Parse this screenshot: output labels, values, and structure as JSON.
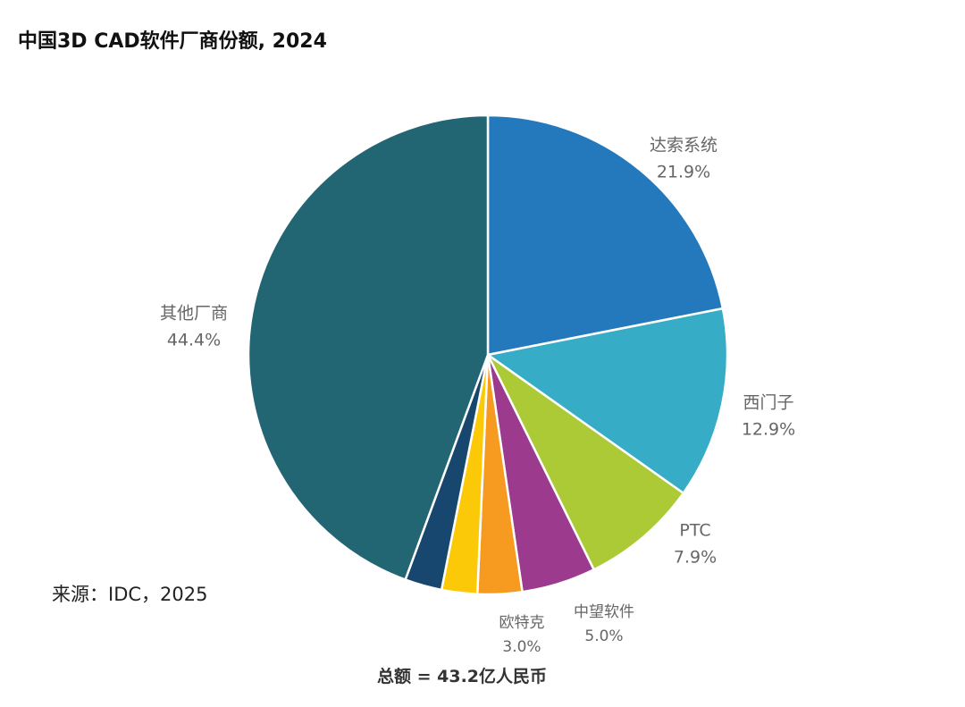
{
  "chart_data": {
    "type": "pie",
    "title": "中国3D CAD软件厂商份额, 2024",
    "start_angle": "12 o'clock",
    "direction": "clockwise",
    "slices": [
      {
        "name": "达索系统",
        "value": 21.9,
        "value_label": "21.9%",
        "color": "#2479BD"
      },
      {
        "name": "西门子",
        "value": 12.9,
        "value_label": "12.9%",
        "color": "#36ACC6"
      },
      {
        "name": "PTC",
        "value": 7.9,
        "value_label": "7.9%",
        "color": "#ACCA35"
      },
      {
        "name": "中望软件",
        "value": 5.0,
        "value_label": "5.0%",
        "color": "#9C3B8E"
      },
      {
        "name": "欧特克",
        "value": 3.0,
        "value_label": "3.0%",
        "color": "#F69A20"
      },
      {
        "name": "",
        "value": 2.4,
        "value_label": "",
        "color": "#FCC908"
      },
      {
        "name": "",
        "value": 2.5,
        "value_label": "",
        "color": "#17476E"
      },
      {
        "name": "其他厂商",
        "value": 44.4,
        "value_label": "44.4%",
        "color": "#226673"
      }
    ],
    "source": "来源：IDC，2025",
    "total": "总额 = 43.2亿人民币"
  }
}
